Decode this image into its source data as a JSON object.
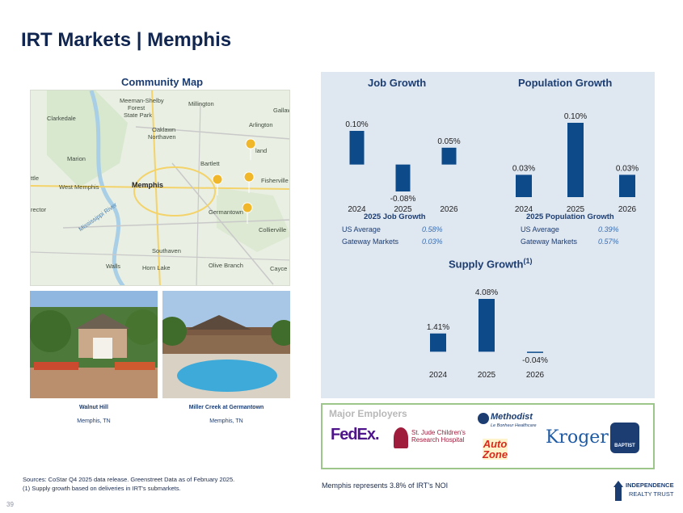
{
  "title": "IRT Markets | Memphis",
  "community_map": {
    "title": "Community Map",
    "labels": [
      "Meeman-Shelby",
      "Forest",
      "State Park",
      "Millington",
      "Clarkedale",
      "Oaklawn",
      "Northaven",
      "Arlington",
      "Marion",
      "Bartlett",
      "West Memphis",
      "Memphis",
      "Fisherville",
      "Germantown",
      "Collierville",
      "Southaven",
      "Horn Lake",
      "Walls",
      "Olive Branch",
      "Gallaw",
      "Cayce",
      "ttle",
      "rector",
      "Mississippi River",
      "land"
    ]
  },
  "properties": [
    {
      "name": "Walnut Hill",
      "location": "Memphis, TN"
    },
    {
      "name": "Miller Creek at Germantown",
      "location": "Memphis, TN"
    }
  ],
  "job_growth": {
    "title": "Job Growth",
    "subtitle": "2025 Job Growth",
    "stats": [
      {
        "label": "US Average",
        "value": "0.58%"
      },
      {
        "label": "Gateway Markets",
        "value": "0.03%"
      }
    ]
  },
  "population_growth": {
    "title": "Population Growth",
    "subtitle": "2025 Population Growth",
    "stats": [
      {
        "label": "US Average",
        "value": "0.39%"
      },
      {
        "label": "Gateway Markets",
        "value": "0.57%"
      }
    ]
  },
  "supply_growth": {
    "title": "Supply Growth",
    "footnote_marker": "(1)"
  },
  "chart_data": [
    {
      "type": "bar",
      "title": "Job Growth",
      "categories": [
        "2024",
        "2025",
        "2026"
      ],
      "values": [
        0.1,
        -0.08,
        0.05
      ],
      "value_labels": [
        "0.10%",
        "-0.08%",
        "0.05%"
      ],
      "ylim": [
        -0.08,
        0.1
      ],
      "color": "#0d4a8a"
    },
    {
      "type": "bar",
      "title": "Population Growth",
      "categories": [
        "2024",
        "2025",
        "2026"
      ],
      "values": [
        0.03,
        0.1,
        0.03
      ],
      "value_labels": [
        "0.03%",
        "0.10%",
        "0.03%"
      ],
      "ylim": [
        0,
        0.1
      ],
      "color": "#0d4a8a"
    },
    {
      "type": "bar",
      "title": "Supply Growth",
      "categories": [
        "2024",
        "2025",
        "2026"
      ],
      "values": [
        1.41,
        4.08,
        -0.04
      ],
      "value_labels": [
        "1.41%",
        "4.08%",
        "-0.04%"
      ],
      "ylim": [
        -0.04,
        4.08
      ],
      "color": "#0d4a8a"
    }
  ],
  "major_employers": {
    "title": "Major Employers",
    "logos": [
      "FedEx.",
      "St. Jude Children's",
      "Research Hospital",
      "Methodist",
      "Le Bonheur Healthcare",
      "Auto",
      "Zone",
      "Kroger",
      "BAPTIST"
    ]
  },
  "noi_note": "Memphis represents 3.8% of IRT's NOI",
  "sources": "Sources: CoStar Q4 2025 data release. Greenstreet Data as of February 2025.",
  "footnote": "(1)  Supply growth based on deliveries in IRT's submarkets.",
  "page_number": "39",
  "brand": {
    "line1": "INDEPENDENCE",
    "line2": "REALTY TRUST"
  },
  "colors": {
    "navy": "#10254f",
    "bar": "#0d4a8a",
    "panel": "#dfe7f1",
    "employer_border": "#9cc68a",
    "pin": "#f1b72b"
  }
}
